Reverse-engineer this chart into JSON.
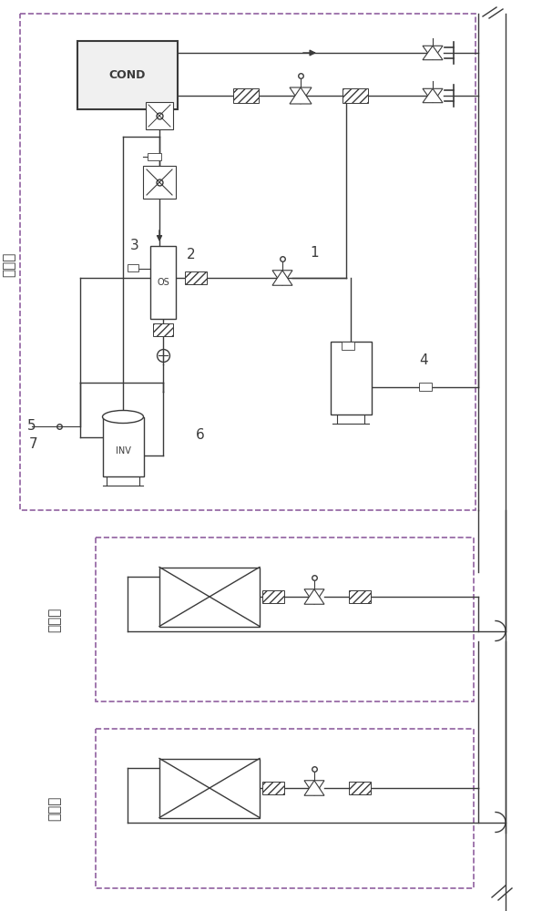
{
  "bg_color": "#ffffff",
  "line_color": "#3a3a3a",
  "dash_color": "#9060a0",
  "component_labels": [
    "1",
    "2",
    "3",
    "4",
    "5",
    "6",
    "7"
  ],
  "outdoor_label": "室外机",
  "indoor_label": "室内机",
  "cond_text": "COND",
  "os_text": "OS",
  "inv_text": "INV"
}
